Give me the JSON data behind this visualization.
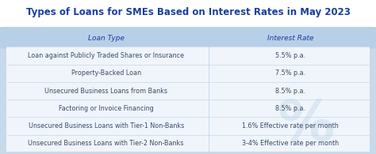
{
  "title": "Types of Loans for SMEs Based on Interest Rates in May 2023",
  "title_color": "#1a3fa0",
  "title_fontsize": 8.5,
  "header": [
    "Loan Type",
    "Interest Rate"
  ],
  "header_bg": "#b8cfe8",
  "header_text_color": "#1a3fa0",
  "rows": [
    [
      "Loan against Publicly Traded Shares or Insurance",
      "5.5% p.a."
    ],
    [
      "Property-Backed Loan",
      "7.5% p.a."
    ],
    [
      "Unsecured Business Loans from Banks",
      "8.5% p.a."
    ],
    [
      "Factoring or Invoice Financing",
      "8.5% p.a."
    ],
    [
      "Unsecured Business Loans with Tier-1 Non-Banks",
      "1.6% Effective rate per month"
    ],
    [
      "Unsecured Business Loans with Tier-2 Non-Banks",
      "3-4% Effective rate per month"
    ]
  ],
  "row_text_color": "#3a4a6b",
  "table_outer_bg": "#c8daea",
  "table_inner_bg": "#f0f5fb",
  "fig_bg": "#ffffff",
  "divider_color": "#b8cfe8",
  "font_size": 5.8,
  "header_font_size": 6.5,
  "col_split": 0.555,
  "watermark_color": "#c8daea",
  "watermark_alpha": 0.5
}
